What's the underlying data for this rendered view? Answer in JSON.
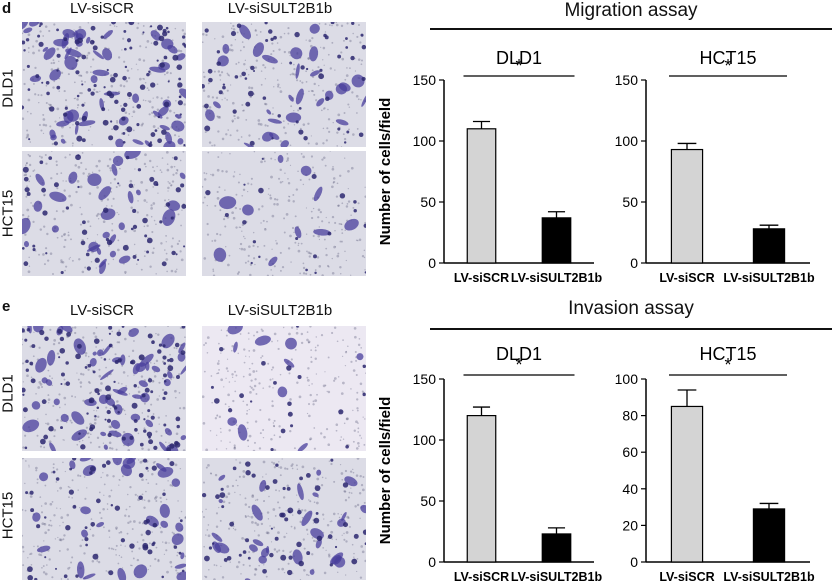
{
  "panels": [
    {
      "letter": "d",
      "assay_title": "Migration assay",
      "micrograph": {
        "columns": [
          "LV-siSCR",
          "LV-siSULT2B1b"
        ],
        "rows": [
          "DLD1",
          "HCT15"
        ]
      }
    },
    {
      "letter": "e",
      "assay_title": "Invasion assay",
      "micrograph": {
        "columns": [
          "LV-siSCR",
          "LV-siSULT2B1b"
        ],
        "rows": [
          "DLD1",
          "HCT15"
        ]
      }
    }
  ],
  "chart_data": [
    {
      "type": "bar",
      "title": "DLD1",
      "ylabel": "Number of cells/field",
      "categories": [
        "LV-siSCR",
        "LV-siSULT2B1b"
      ],
      "values": [
        110,
        37
      ],
      "errors": [
        6,
        5
      ],
      "ylim": [
        0,
        150
      ],
      "yticks": [
        0,
        50,
        100,
        150
      ],
      "significance": "*",
      "colors": [
        "#d4d4d4",
        "#000000"
      ]
    },
    {
      "type": "bar",
      "title": "HCT15",
      "ylabel": "",
      "categories": [
        "LV-siSCR",
        "LV-siSULT2B1b"
      ],
      "values": [
        93,
        28
      ],
      "errors": [
        5,
        3
      ],
      "ylim": [
        0,
        150
      ],
      "yticks": [
        0,
        50,
        100,
        150
      ],
      "significance": "*",
      "colors": [
        "#d4d4d4",
        "#000000"
      ]
    },
    {
      "type": "bar",
      "title": "DLD1",
      "ylabel": "Number of cells/field",
      "categories": [
        "LV-siSCR",
        "LV-siSULT2B1b"
      ],
      "values": [
        120,
        23
      ],
      "errors": [
        7,
        5
      ],
      "ylim": [
        0,
        150
      ],
      "yticks": [
        0,
        50,
        100,
        150
      ],
      "significance": "*",
      "colors": [
        "#d4d4d4",
        "#000000"
      ]
    },
    {
      "type": "bar",
      "title": "HCT15",
      "ylabel": "",
      "categories": [
        "LV-siSCR",
        "LV-siSULT2B1b"
      ],
      "values": [
        85,
        29
      ],
      "errors": [
        9,
        3
      ],
      "ylim": [
        0,
        100
      ],
      "yticks": [
        0,
        20,
        40,
        60,
        80,
        100
      ],
      "significance": "*",
      "colors": [
        "#d4d4d4",
        "#000000"
      ]
    }
  ]
}
